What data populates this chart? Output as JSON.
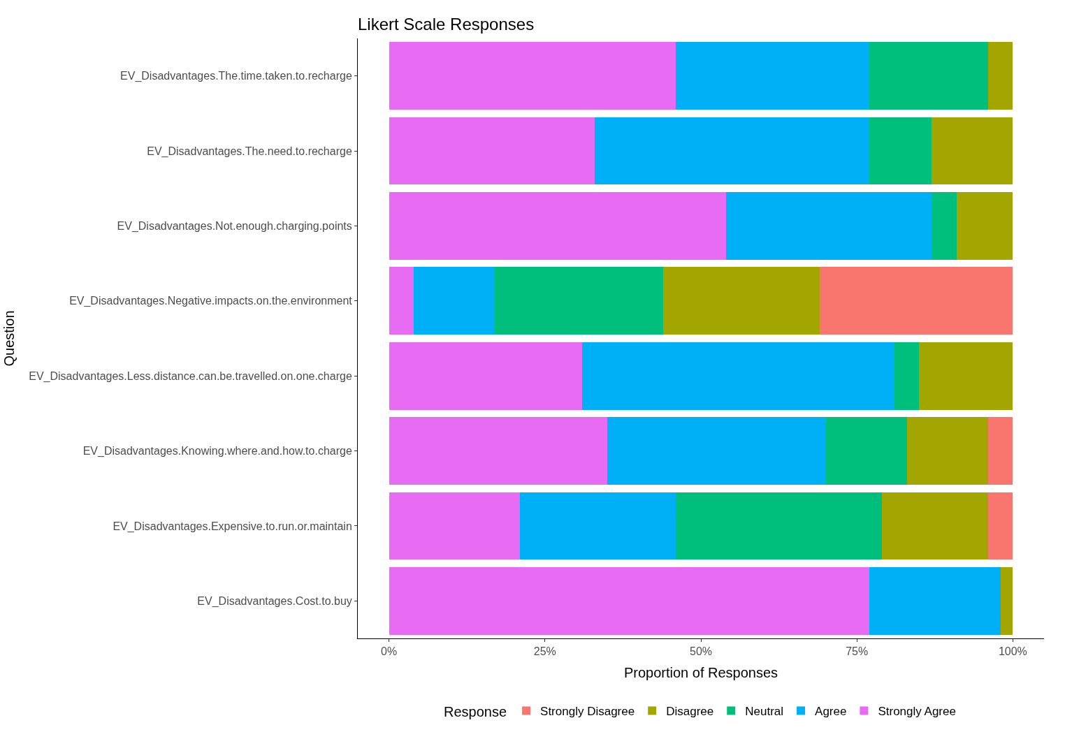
{
  "chart_data": {
    "type": "bar",
    "orientation": "horizontal",
    "stacked": true,
    "title": "Likert Scale Responses",
    "xlabel": "Proportion of Responses",
    "ylabel": "Question",
    "legend_title": "Response",
    "legend": "bottom",
    "categories": [
      "EV_Disadvantages.The.time.taken.to.recharge",
      "EV_Disadvantages.The.need.to.recharge",
      "EV_Disadvantages.Not.enough.charging.points",
      "EV_Disadvantages.Negative.impacts.on.the.environment",
      "EV_Disadvantages.Less.distance.can.be.travelled.on.one.charge",
      "EV_Disadvantages.Knowing.where.and.how.to.charge",
      "EV_Disadvantages.Expensive.to.run.or.maintain",
      "EV_Disadvantages.Cost.to.buy"
    ],
    "series": [
      {
        "name": "Strongly Agree",
        "color": "#e76bf3",
        "values": [
          46,
          33,
          54,
          4,
          31,
          35,
          21,
          77
        ]
      },
      {
        "name": "Agree",
        "color": "#00b0f6",
        "values": [
          31,
          44,
          33,
          13,
          50,
          35,
          25,
          21
        ]
      },
      {
        "name": "Neutral",
        "color": "#00bf7d",
        "values": [
          19,
          10,
          4,
          27,
          4,
          13,
          33,
          null
        ]
      },
      {
        "name": "Disagree",
        "color": "#a3a500",
        "values": [
          4,
          13,
          9,
          25,
          15,
          13,
          17,
          2
        ]
      },
      {
        "name": "Strongly Disagree",
        "color": "#f8766d",
        "values": [
          null,
          null,
          null,
          31,
          null,
          4,
          4,
          null
        ]
      }
    ],
    "xlim": [
      -5,
      105
    ],
    "xticks": [
      {
        "value": 0,
        "label": "0%"
      },
      {
        "value": 25,
        "label": "25%"
      },
      {
        "value": 50,
        "label": "50%"
      },
      {
        "value": 75,
        "label": "75%"
      },
      {
        "value": 100,
        "label": "100%"
      }
    ]
  }
}
